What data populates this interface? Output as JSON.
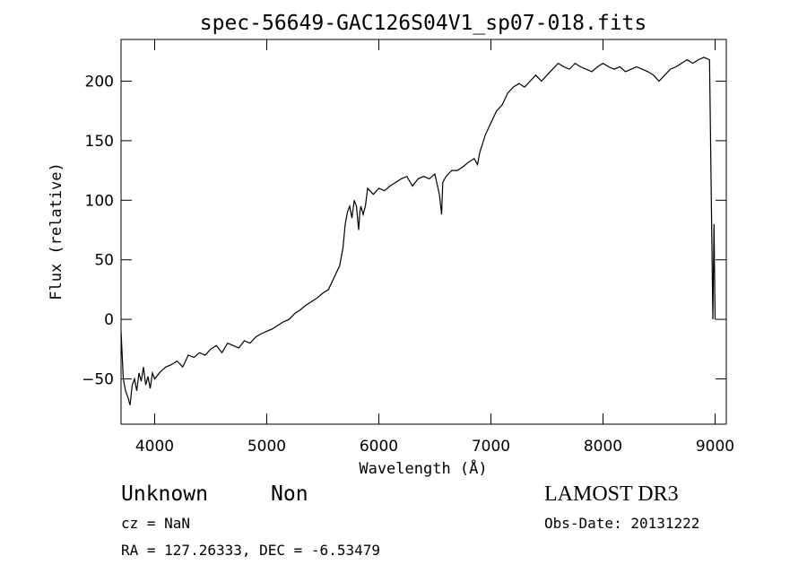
{
  "chart_data": {
    "type": "line",
    "title": "spec-56649-GAC126S04V1_sp07-018.fits",
    "xlabel": "Wavelength (Å)",
    "ylabel": "Flux (relative)",
    "xlim": [
      3700,
      9100
    ],
    "ylim": [
      -88,
      235
    ],
    "xticks": [
      4000,
      5000,
      6000,
      7000,
      8000,
      9000
    ],
    "yticks": [
      -50,
      0,
      50,
      100,
      150,
      200
    ],
    "grid": false,
    "series": [
      {
        "x": [
          3700,
          3720,
          3740,
          3760,
          3780,
          3800,
          3820,
          3840,
          3860,
          3880,
          3900,
          3920,
          3940,
          3960,
          3980,
          4000,
          4050,
          4100,
          4150,
          4200,
          4250,
          4300,
          4350,
          4400,
          4450,
          4500,
          4550,
          4600,
          4650,
          4700,
          4750,
          4800,
          4850,
          4900,
          4950,
          5000,
          5050,
          5100,
          5150,
          5200,
          5250,
          5300,
          5350,
          5400,
          5450,
          5500,
          5550,
          5600,
          5650,
          5680,
          5700,
          5720,
          5740,
          5760,
          5780,
          5800,
          5820,
          5830,
          5840,
          5860,
          5880,
          5900,
          5950,
          6000,
          6050,
          6100,
          6150,
          6200,
          6250,
          6300,
          6350,
          6400,
          6450,
          6500,
          6540,
          6560,
          6570,
          6600,
          6650,
          6700,
          6750,
          6800,
          6850,
          6880,
          6900,
          6950,
          7000,
          7050,
          7100,
          7150,
          7200,
          7250,
          7300,
          7350,
          7400,
          7450,
          7500,
          7550,
          7600,
          7650,
          7700,
          7750,
          7800,
          7850,
          7900,
          7950,
          8000,
          8050,
          8100,
          8150,
          8200,
          8250,
          8300,
          8350,
          8400,
          8450,
          8500,
          8550,
          8600,
          8650,
          8700,
          8750,
          8800,
          8850,
          8900,
          8950,
          8980,
          8990,
          9000
        ],
        "y": [
          -10,
          -50,
          -60,
          -65,
          -72,
          -55,
          -50,
          -60,
          -45,
          -52,
          -40,
          -55,
          -48,
          -58,
          -45,
          -50,
          -44,
          -40,
          -38,
          -35,
          -40,
          -30,
          -32,
          -28,
          -30,
          -25,
          -22,
          -28,
          -20,
          -22,
          -24,
          -18,
          -20,
          -15,
          -12,
          -10,
          -8,
          -5,
          -2,
          0,
          5,
          8,
          12,
          15,
          18,
          22,
          25,
          35,
          45,
          60,
          80,
          90,
          95,
          85,
          100,
          95,
          75,
          90,
          95,
          88,
          95,
          110,
          105,
          110,
          108,
          112,
          115,
          118,
          120,
          112,
          118,
          120,
          118,
          122,
          105,
          88,
          115,
          120,
          125,
          125,
          128,
          132,
          135,
          130,
          140,
          155,
          165,
          175,
          180,
          190,
          195,
          198,
          195,
          200,
          205,
          200,
          205,
          210,
          215,
          212,
          210,
          215,
          212,
          210,
          208,
          212,
          215,
          212,
          210,
          212,
          208,
          210,
          212,
          210,
          208,
          205,
          200,
          205,
          210,
          212,
          215,
          218,
          215,
          218,
          220,
          218,
          0,
          80,
          0
        ]
      }
    ]
  },
  "footer": {
    "object_class": "Unknown",
    "object_subclass": "Non",
    "survey": "LAMOST DR3",
    "cz": "cz = NaN",
    "obs_date": "Obs-Date: 20131222",
    "coords": "RA = 127.26333, DEC =  -6.53479"
  }
}
